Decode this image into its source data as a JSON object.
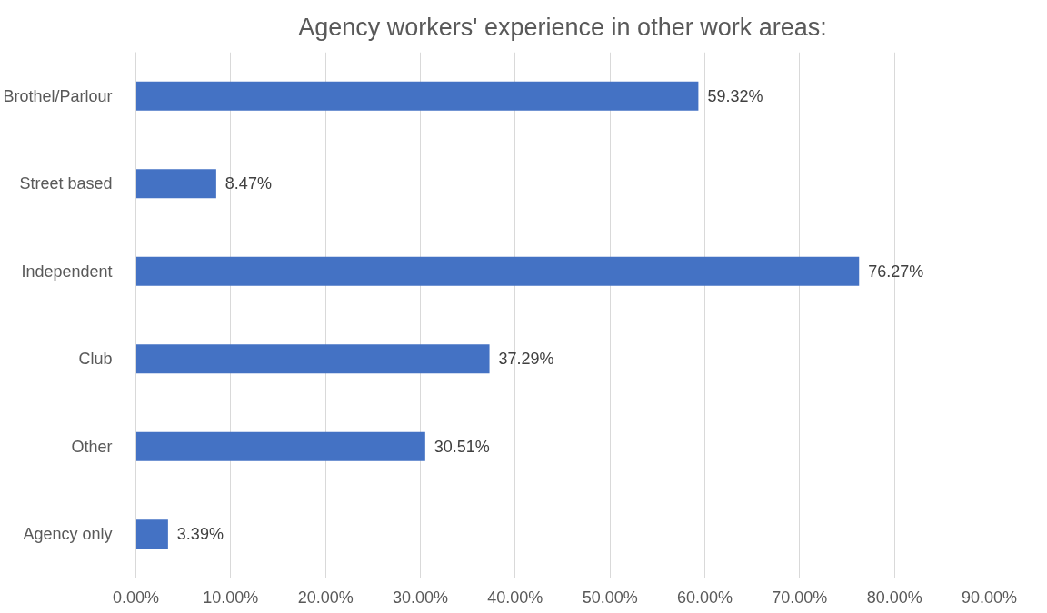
{
  "chart_data": {
    "type": "bar",
    "orientation": "horizontal",
    "title": "Agency workers' experience in other work areas:",
    "categories": [
      "Brothel/Parlour",
      "Street based",
      "Independent",
      "Club",
      "Other",
      "Agency only"
    ],
    "values": [
      59.32,
      8.47,
      76.27,
      37.29,
      30.51,
      3.39
    ],
    "value_labels": [
      "59.32%",
      "8.47%",
      "76.27%",
      "37.29%",
      "30.51%",
      "3.39%"
    ],
    "color": "#4472c4",
    "xlim": [
      0,
      90
    ],
    "xticks": [
      {
        "value": 0,
        "label": "0.00%"
      },
      {
        "value": 10,
        "label": "10.00%"
      },
      {
        "value": 20,
        "label": "20.00%"
      },
      {
        "value": 30,
        "label": "30.00%"
      },
      {
        "value": 40,
        "label": "40.00%"
      },
      {
        "value": 50,
        "label": "50.00%"
      },
      {
        "value": 60,
        "label": "60.00%"
      },
      {
        "value": 70,
        "label": "70.00%"
      },
      {
        "value": 80,
        "label": "80.00%"
      },
      {
        "value": 90,
        "label": "90.00%"
      }
    ],
    "grid": "x"
  }
}
